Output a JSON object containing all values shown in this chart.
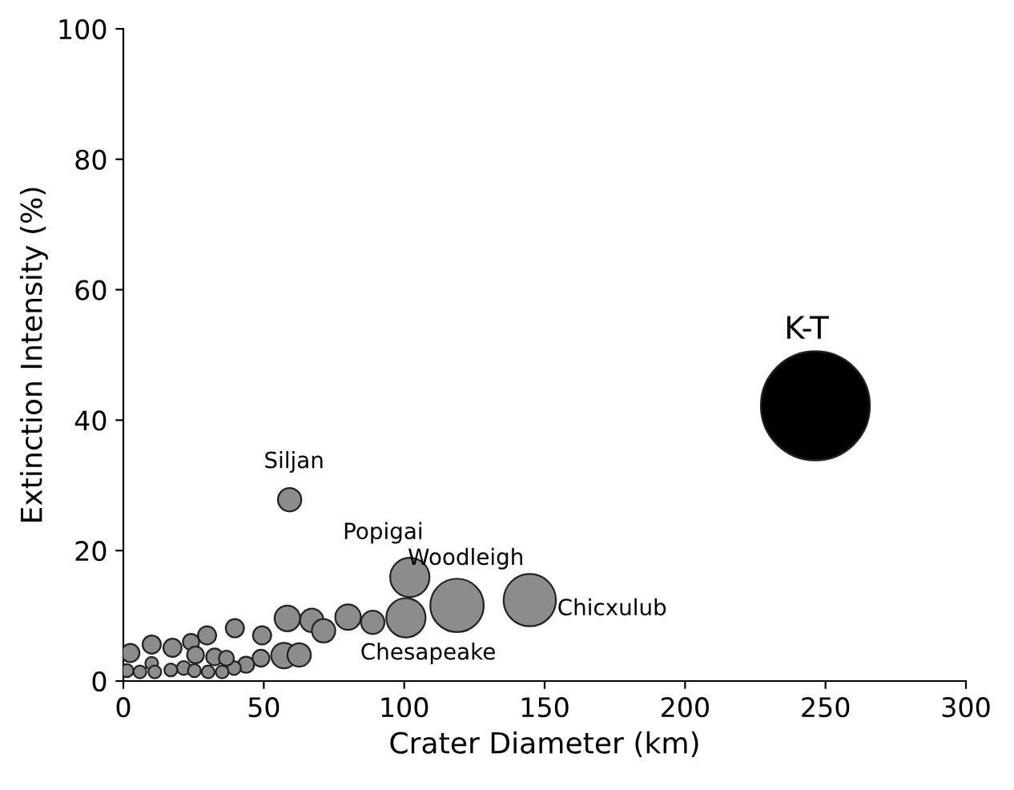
{
  "chart_data": {
    "type": "bubble",
    "xlabel": "Crater Diameter (km)",
    "ylabel": "Extinction Intensity (%)",
    "xlim": [
      0,
      300
    ],
    "xticks": [
      0,
      50,
      100,
      150,
      200,
      250,
      300
    ],
    "ylim": [
      0,
      100
    ],
    "yticks": [
      0,
      20,
      40,
      60,
      80,
      100
    ],
    "grid": false,
    "legend": false,
    "x": [
      246.4,
      59.2,
      102,
      118.8,
      144.7,
      100.6,
      58.4,
      67.1,
      71.3,
      80,
      88.8,
      57.2,
      62.6,
      39.7,
      49.4,
      49,
      43.7,
      39.4,
      29.8,
      24.1,
      17.5,
      10.1,
      2.5,
      25.7,
      32.5,
      36.7,
      21.5,
      10.1,
      16.9,
      25.3,
      30.2,
      35.2,
      1.3,
      5.9,
      11.2
    ],
    "values": [
      42.2,
      27.8,
      15.9,
      11.6,
      12.4,
      9.7,
      9.6,
      9.3,
      7.7,
      9.8,
      9.0,
      3.9,
      4.0,
      8.1,
      7.0,
      3.5,
      2.5,
      2.0,
      7.0,
      6.0,
      5.1,
      5.6,
      4.3,
      4.0,
      3.7,
      3.5,
      2.0,
      2.7,
      1.7,
      1.6,
      1.4,
      1.4,
      1.6,
      1.4,
      1.4
    ],
    "sizes": [
      1,
      0.046,
      0.13,
      0.24,
      0.23,
      0.13,
      0.055,
      0.046,
      0.046,
      0.055,
      0.046,
      0.055,
      0.046,
      0.028,
      0.028,
      0.024,
      0.022,
      0.016,
      0.028,
      0.022,
      0.028,
      0.028,
      0.028,
      0.024,
      0.024,
      0.019,
      0.016,
      0.014,
      0.014,
      0.014,
      0.014,
      0.014,
      0.014,
      0.014,
      0.014
    ],
    "colors": [
      "#000000",
      "#8c8c8c",
      "#8c8c8c",
      "#8c8c8c",
      "#8c8c8c",
      "#8c8c8c",
      "#8c8c8c",
      "#8c8c8c",
      "#8c8c8c",
      "#8c8c8c",
      "#8c8c8c",
      "#8c8c8c",
      "#8c8c8c",
      "#8c8c8c",
      "#8c8c8c",
      "#8c8c8c",
      "#8c8c8c",
      "#8c8c8c",
      "#8c8c8c",
      "#8c8c8c",
      "#8c8c8c",
      "#8c8c8c",
      "#8c8c8c",
      "#8c8c8c",
      "#8c8c8c",
      "#8c8c8c",
      "#8c8c8c",
      "#8c8c8c",
      "#8c8c8c",
      "#8c8c8c",
      "#8c8c8c",
      "#8c8c8c",
      "#8c8c8c",
      "#8c8c8c",
      "#8c8c8c"
    ],
    "annotations": [
      {
        "text": "K-T",
        "x": 246.4,
        "y": 42.2
      },
      {
        "text": "Siljan",
        "x": 59.2,
        "y": 27.8
      },
      {
        "text": "Popigai",
        "x": 102,
        "y": 15.9
      },
      {
        "text": "Woodleigh",
        "x": 118.8,
        "y": 11.6
      },
      {
        "text": "Chicxulub",
        "x": 144.7,
        "y": 12.4
      },
      {
        "text": "Chesapeake",
        "x": 100.6,
        "y": 9.7
      }
    ]
  }
}
